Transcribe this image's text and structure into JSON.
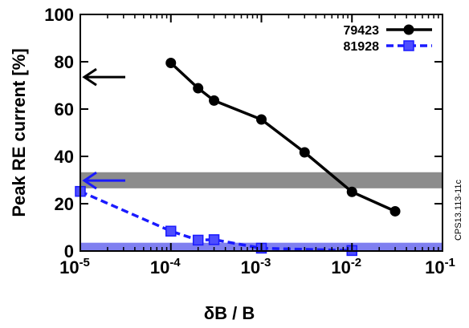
{
  "chart_data": {
    "type": "line",
    "xlabel": "δB / B",
    "ylabel": "Peak RE current [%]",
    "x_scale": "log",
    "xlim": [
      1e-05,
      0.1
    ],
    "ylim": [
      0,
      100
    ],
    "y_ticks": [
      "0",
      "20",
      "40",
      "60",
      "80",
      "100"
    ],
    "x_ticks": [
      {
        "base": "10",
        "exp": "-5",
        "value": 1e-05
      },
      {
        "base": "10",
        "exp": "-4",
        "value": 0.0001
      },
      {
        "base": "10",
        "exp": "-3",
        "value": 0.001
      },
      {
        "base": "10",
        "exp": "-2",
        "value": 0.01
      },
      {
        "base": "10",
        "exp": "-1",
        "value": 0.1
      }
    ],
    "grid": false,
    "legend_position": "top-right",
    "series": [
      {
        "name": "79423",
        "color": "#000000",
        "marker": "circle",
        "line": "solid",
        "x": [
          0.0001,
          0.0002,
          0.0003,
          0.001,
          0.003,
          0.01,
          0.03
        ],
        "y": [
          79.5,
          68.8,
          63.6,
          55.6,
          41.7,
          25.0,
          16.8
        ]
      },
      {
        "name": "81928",
        "color": "#1a1aff",
        "marker": "square",
        "line": "dashed",
        "x": [
          1e-05,
          0.0001,
          0.0002,
          0.0003,
          0.001,
          0.01
        ],
        "y": [
          25.2,
          8.4,
          4.6,
          4.8,
          1.2,
          0.2
        ]
      }
    ],
    "bands": [
      {
        "y_from": 26.5,
        "y_to": 33.3,
        "color": "#8c8c8c"
      },
      {
        "y_from": 0,
        "y_to": 3.5,
        "color": "#7f7ff0"
      }
    ],
    "arrows": [
      {
        "y": 73.5,
        "color": "#000000"
      },
      {
        "y": 29.8,
        "color": "#1a1aff"
      }
    ],
    "side_note": "CPS13.113-11c"
  }
}
